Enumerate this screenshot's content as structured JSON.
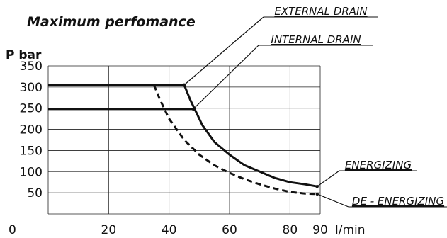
{
  "chart_data": {
    "type": "line",
    "title": "Maximum perfomance",
    "ylabel": "P bar",
    "xlabel": "l/min",
    "xlim": [
      0,
      90
    ],
    "ylim": [
      0,
      350
    ],
    "x_ticks": [
      "0",
      "20",
      "40",
      "60",
      "80",
      "90"
    ],
    "y_ticks": [
      "50",
      "100",
      "150",
      "200",
      "250",
      "300",
      "350"
    ],
    "grid": true,
    "series": [
      {
        "name": "EXTERNAL DRAIN",
        "style": "solid",
        "x": [
          0,
          45,
          47,
          49,
          51,
          55,
          60,
          65,
          70,
          75,
          80,
          85,
          89
        ],
        "y": [
          305,
          305,
          270,
          240,
          210,
          170,
          140,
          115,
          100,
          85,
          75,
          70,
          65
        ]
      },
      {
        "name": "INTERNAL DRAIN",
        "style": "solid",
        "x": [
          0,
          48
        ],
        "y": [
          248,
          248
        ]
      },
      {
        "name": "DE - ENERGIZING",
        "style": "dashed",
        "x": [
          35,
          37,
          40,
          45,
          50,
          55,
          60,
          65,
          70,
          75,
          80,
          85,
          89
        ],
        "y": [
          305,
          270,
          225,
          175,
          140,
          115,
          97,
          82,
          70,
          60,
          52,
          48,
          47
        ]
      }
    ],
    "annotations": [
      {
        "text": "EXTERNAL DRAIN",
        "target_x": 45,
        "target_y": 305
      },
      {
        "text": "INTERNAL DRAIN",
        "target_x": 48,
        "target_y": 248
      },
      {
        "text": "ENERGIZING",
        "target_x": 89,
        "target_y": 65
      },
      {
        "text": "DE - ENERGIZING",
        "target_x": 89,
        "target_y": 47
      }
    ]
  }
}
